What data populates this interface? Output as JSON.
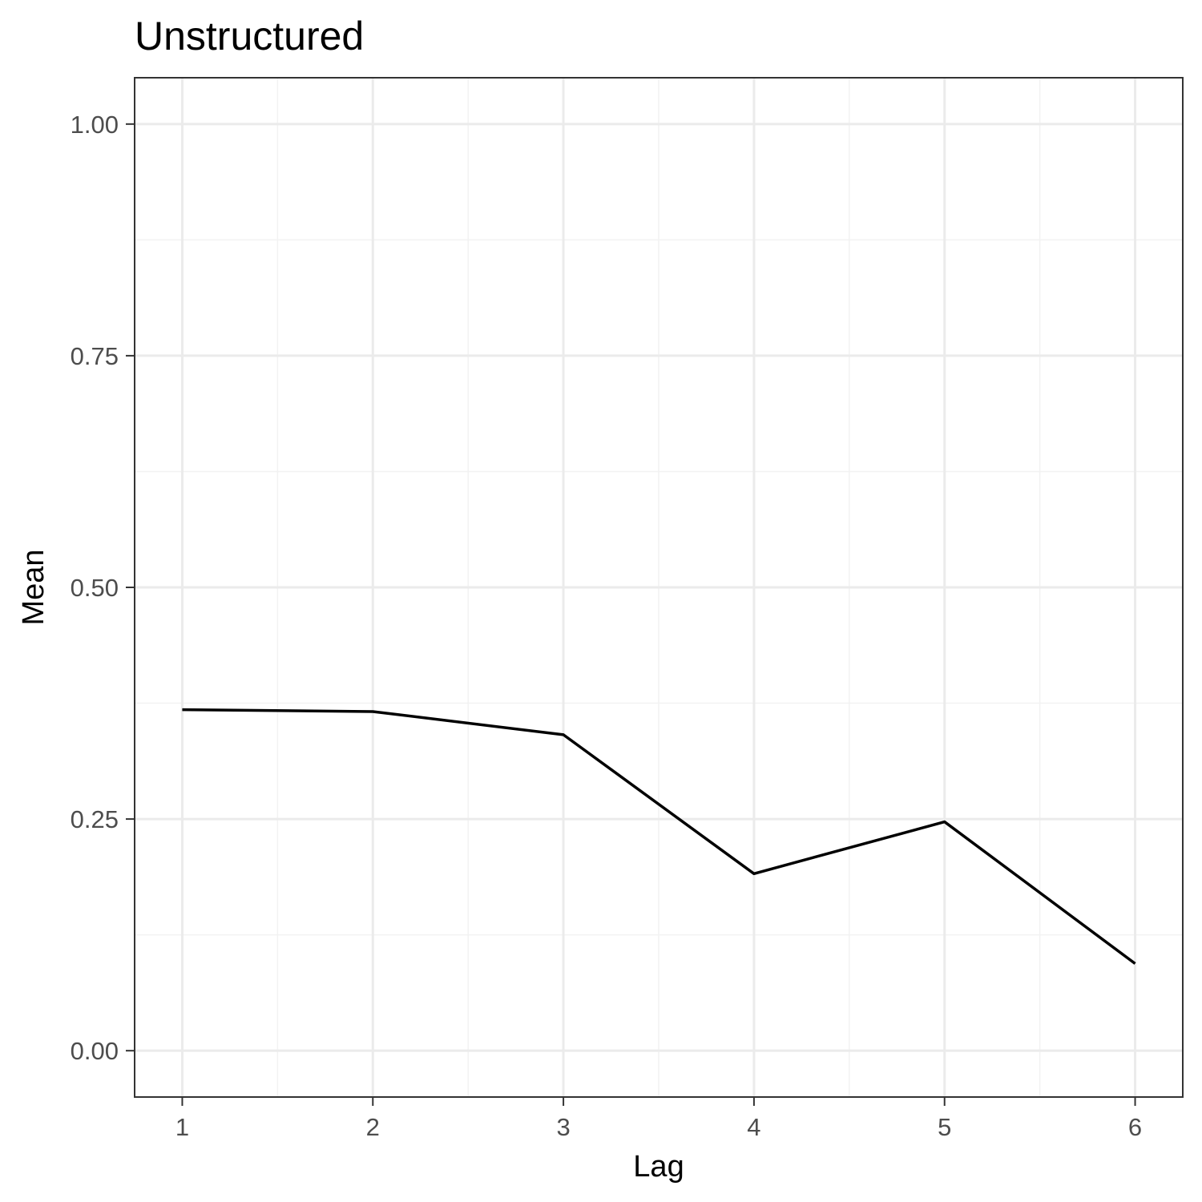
{
  "chart_data": {
    "type": "line",
    "title": "Unstructured",
    "xlabel": "Lag",
    "ylabel": "Mean",
    "x": [
      1,
      2,
      3,
      4,
      5,
      6
    ],
    "series": [
      {
        "values": [
          0.368,
          0.366,
          0.341,
          0.191,
          0.247,
          0.094
        ],
        "color": "#000000"
      }
    ],
    "xlim": [
      0.75,
      6.25
    ],
    "ylim": [
      -0.05,
      1.05
    ],
    "xticks": [
      1,
      2,
      3,
      4,
      5,
      6
    ],
    "xtick_labels": [
      "1",
      "2",
      "3",
      "4",
      "5",
      "6"
    ],
    "yticks": [
      0,
      0.25,
      0.5,
      0.75,
      1.0
    ],
    "ytick_labels": [
      "0.00",
      "0.25",
      "0.50",
      "0.75",
      "1.00"
    ],
    "grid": true,
    "theme": "bw"
  }
}
